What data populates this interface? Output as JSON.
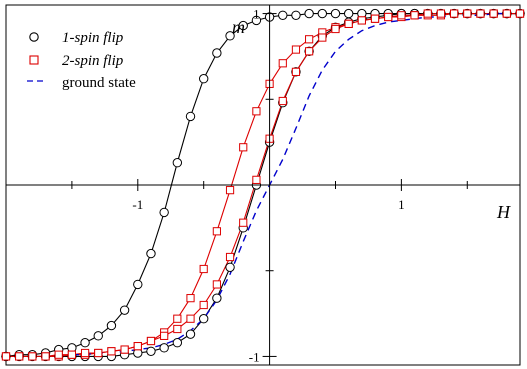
{
  "chart_data": {
    "type": "line",
    "xlabel": "H",
    "ylabel": "m",
    "xlim": [
      -2.0,
      1.9
    ],
    "ylim": [
      -1.05,
      1.05
    ],
    "x_ticks": [
      {
        "value": -1,
        "label": "-1"
      },
      {
        "value": 1,
        "label": "1"
      }
    ],
    "y_ticks": [
      {
        "value": -1,
        "label": "-1"
      },
      {
        "value": 1,
        "label": "1"
      }
    ],
    "legend": {
      "position": "top-left",
      "entries": [
        {
          "label": "1-spin flip",
          "marker": "circle",
          "color": "#000000",
          "italic": true
        },
        {
          "label": "2-spin flip",
          "marker": "square",
          "color": "#dd0000",
          "italic": true
        },
        {
          "label": "ground state",
          "marker": "dashed-line",
          "color": "#0000cc",
          "italic": false
        }
      ]
    },
    "series": [
      {
        "name": "1-spin flip",
        "branch": "ascending",
        "color": "#000000",
        "x": [
          -2.0,
          -1.9,
          -1.8,
          -1.7,
          -1.6,
          -1.5,
          -1.4,
          -1.3,
          -1.2,
          -1.1,
          -1.0,
          -0.9,
          -0.8,
          -0.7,
          -0.6,
          -0.5,
          -0.4,
          -0.3,
          -0.2,
          -0.1,
          0.0,
          0.1,
          0.2,
          0.3,
          0.4,
          0.5,
          0.6,
          0.7,
          0.8,
          0.9,
          1.0,
          1.1,
          1.2,
          1.3,
          1.4,
          1.5,
          1.6,
          1.7,
          1.8,
          1.9
        ],
        "y": [
          -1.0,
          -1.0,
          -1.0,
          -1.0,
          -1.0,
          -1.0,
          -1.0,
          -1.0,
          -1.0,
          -0.99,
          -0.98,
          -0.97,
          -0.95,
          -0.92,
          -0.87,
          -0.78,
          -0.66,
          -0.48,
          -0.25,
          0.0,
          0.25,
          0.48,
          0.66,
          0.78,
          0.87,
          0.92,
          0.95,
          0.97,
          0.98,
          0.99,
          1.0,
          1.0,
          1.0,
          1.0,
          1.0,
          1.0,
          1.0,
          1.0,
          1.0,
          1.0
        ]
      },
      {
        "name": "1-spin flip",
        "branch": "descending",
        "color": "#000000",
        "x": [
          -2.0,
          -1.9,
          -1.8,
          -1.7,
          -1.6,
          -1.5,
          -1.4,
          -1.3,
          -1.2,
          -1.1,
          -1.0,
          -0.9,
          -0.8,
          -0.7,
          -0.6,
          -0.5,
          -0.4,
          -0.3,
          -0.2,
          -0.1,
          0.0,
          0.1,
          0.2,
          0.3,
          0.4,
          0.5,
          0.6,
          0.7,
          0.8,
          0.9,
          1.0,
          1.1,
          1.2,
          1.3,
          1.4,
          1.5,
          1.6,
          1.7,
          1.8,
          1.9
        ],
        "y": [
          -1.0,
          -0.99,
          -0.99,
          -0.98,
          -0.96,
          -0.95,
          -0.92,
          -0.88,
          -0.82,
          -0.73,
          -0.58,
          -0.4,
          -0.16,
          0.13,
          0.4,
          0.62,
          0.77,
          0.87,
          0.93,
          0.96,
          0.98,
          0.99,
          0.99,
          1.0,
          1.0,
          1.0,
          1.0,
          1.0,
          1.0,
          1.0,
          1.0,
          1.0,
          1.0,
          1.0,
          1.0,
          1.0,
          1.0,
          1.0,
          1.0,
          1.0
        ]
      },
      {
        "name": "2-spin flip",
        "branch": "descending",
        "color": "#dd0000",
        "x": [
          -2.0,
          -1.9,
          -1.8,
          -1.7,
          -1.6,
          -1.5,
          -1.4,
          -1.3,
          -1.2,
          -1.1,
          -1.0,
          -0.9,
          -0.8,
          -0.7,
          -0.6,
          -0.5,
          -0.4,
          -0.3,
          -0.2,
          -0.1,
          0.0,
          0.1,
          0.2,
          0.3,
          0.4,
          0.5,
          0.6,
          0.7,
          0.8,
          0.9,
          1.0,
          1.1,
          1.2,
          1.3,
          1.4,
          1.5,
          1.6,
          1.7,
          1.8,
          1.9
        ],
        "y": [
          -1.0,
          -1.0,
          -1.0,
          -1.0,
          -1.0,
          -0.99,
          -0.99,
          -0.98,
          -0.97,
          -0.96,
          -0.94,
          -0.91,
          -0.86,
          -0.78,
          -0.66,
          -0.49,
          -0.27,
          -0.03,
          0.22,
          0.43,
          0.59,
          0.71,
          0.79,
          0.85,
          0.89,
          0.92,
          0.94,
          0.96,
          0.97,
          0.98,
          0.98,
          0.99,
          0.99,
          0.99,
          1.0,
          1.0,
          1.0,
          1.0,
          1.0,
          1.0
        ]
      },
      {
        "name": "2-spin flip",
        "branch": "ascending",
        "color": "#dd0000",
        "x": [
          -2.0,
          -1.9,
          -1.8,
          -1.7,
          -1.6,
          -1.5,
          -1.4,
          -1.3,
          -1.2,
          -1.1,
          -1.0,
          -0.9,
          -0.8,
          -0.7,
          -0.6,
          -0.5,
          -0.4,
          -0.3,
          -0.2,
          -0.1,
          0.0,
          0.1,
          0.2,
          0.3,
          0.4,
          0.5,
          0.6,
          0.7,
          0.8,
          0.9,
          1.0,
          1.1,
          1.2,
          1.3,
          1.4,
          1.5,
          1.6,
          1.7,
          1.8,
          1.9
        ],
        "y": [
          -1.0,
          -1.0,
          -1.0,
          -1.0,
          -0.99,
          -0.99,
          -0.98,
          -0.98,
          -0.97,
          -0.96,
          -0.94,
          -0.91,
          -0.88,
          -0.84,
          -0.78,
          -0.7,
          -0.58,
          -0.42,
          -0.22,
          0.03,
          0.27,
          0.49,
          0.66,
          0.78,
          0.86,
          0.91,
          0.94,
          0.96,
          0.97,
          0.98,
          0.99,
          0.99,
          1.0,
          1.0,
          1.0,
          1.0,
          1.0,
          1.0,
          1.0,
          1.0
        ]
      },
      {
        "name": "ground state",
        "color": "#0000cc",
        "dashed": true,
        "x": [
          -1.5,
          -1.4,
          -1.3,
          -1.2,
          -1.1,
          -1.0,
          -0.9,
          -0.8,
          -0.7,
          -0.6,
          -0.5,
          -0.4,
          -0.3,
          -0.2,
          -0.1,
          0.0,
          0.1,
          0.2,
          0.3,
          0.4,
          0.5,
          0.6,
          0.7,
          0.8,
          0.9,
          1.0,
          1.1,
          1.2,
          1.3,
          1.4,
          1.5,
          1.6,
          1.7,
          1.8
        ],
        "y": [
          -0.99,
          -0.99,
          -0.98,
          -0.98,
          -0.97,
          -0.96,
          -0.95,
          -0.93,
          -0.9,
          -0.85,
          -0.78,
          -0.67,
          -0.52,
          -0.33,
          -0.15,
          0.0,
          0.15,
          0.33,
          0.52,
          0.67,
          0.78,
          0.85,
          0.9,
          0.93,
          0.95,
          0.96,
          0.97,
          0.98,
          0.98,
          0.99,
          0.99,
          0.99,
          1.0,
          1.0
        ]
      }
    ]
  }
}
